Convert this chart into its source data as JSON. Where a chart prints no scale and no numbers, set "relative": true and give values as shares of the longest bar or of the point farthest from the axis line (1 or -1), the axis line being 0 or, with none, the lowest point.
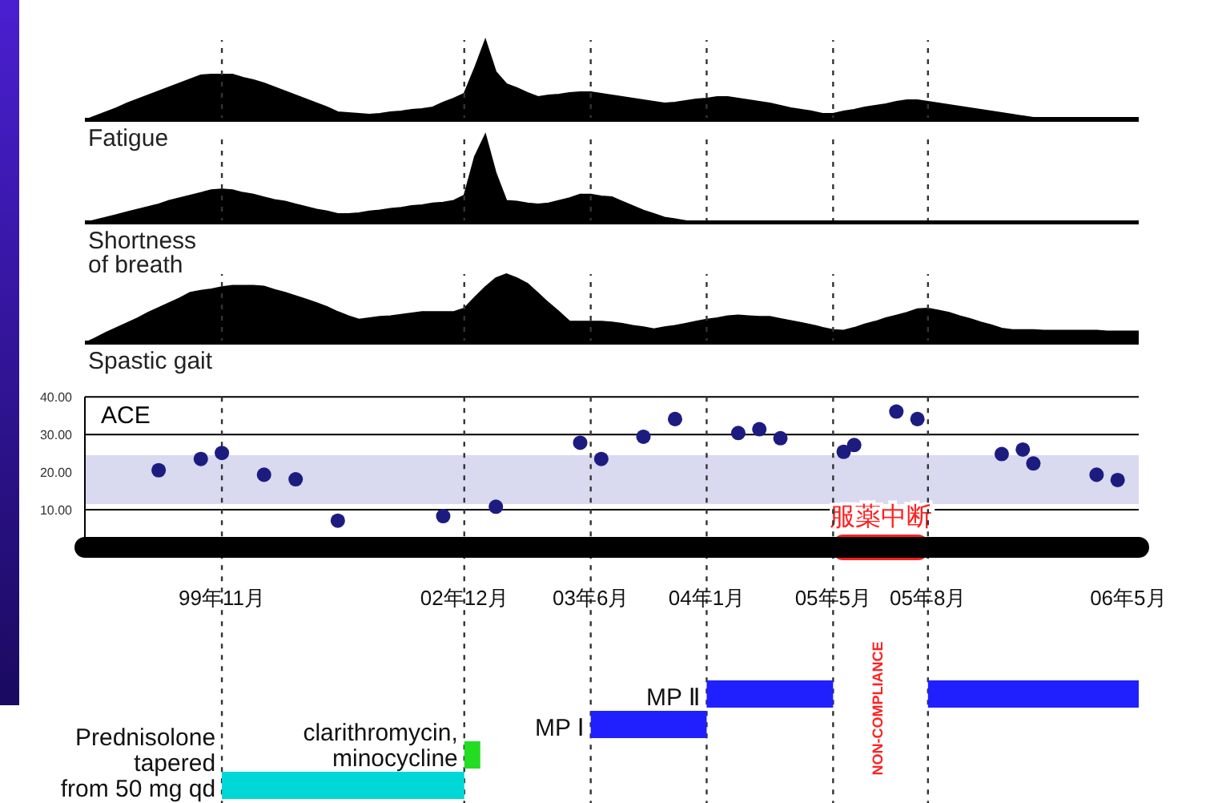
{
  "chart_data": [
    {
      "type": "area",
      "xlabel": "Fatigue",
      "relative": true,
      "color": "#000000",
      "tick_labels": false,
      "categories": [
        null,
        null,
        null,
        null,
        null,
        null,
        null,
        null,
        null,
        null,
        null,
        null,
        null,
        "99年11月",
        null,
        null,
        null,
        null,
        null,
        null,
        null,
        null,
        null,
        null,
        null,
        null,
        null,
        null,
        null,
        null,
        null,
        null,
        null,
        null,
        null,
        null,
        "02年12月",
        null,
        null,
        null,
        null,
        null,
        null,
        null,
        null,
        null,
        null,
        null,
        "03年6月",
        null,
        null,
        null,
        null,
        null,
        null,
        null,
        null,
        null,
        null,
        "04年1月",
        null,
        null,
        null,
        null,
        null,
        null,
        null,
        null,
        null,
        null,
        null,
        "05年5月",
        null,
        null,
        null,
        null,
        null,
        null,
        null,
        null,
        "05年8月",
        null,
        null,
        null,
        null,
        null,
        null,
        null,
        null,
        null,
        null,
        null,
        null,
        null,
        null,
        null,
        null,
        null,
        null,
        "06年5月",
        null
      ],
      "values": [
        0,
        0.05,
        0.1,
        0.15,
        0.21,
        0.26,
        0.31,
        0.36,
        0.41,
        0.46,
        0.51,
        0.56,
        0.57,
        0.57,
        0.57,
        0.53,
        0.5,
        0.46,
        0.41,
        0.36,
        0.31,
        0.26,
        0.21,
        0.16,
        0.1,
        0.09,
        0.08,
        0.07,
        0.08,
        0.1,
        0.11,
        0.13,
        0.14,
        0.16,
        0.22,
        0.27,
        0.33,
        0.65,
        1,
        0.6,
        0.45,
        0.4,
        0.34,
        0.29,
        0.31,
        0.32,
        0.34,
        0.35,
        0.35,
        0.33,
        0.31,
        0.29,
        0.27,
        0.25,
        0.23,
        0.21,
        0.22,
        0.24,
        0.26,
        0.27,
        0.29,
        0.29,
        0.27,
        0.25,
        0.23,
        0.21,
        0.18,
        0.15,
        0.13,
        0.11,
        0.08,
        0.08,
        0.11,
        0.13,
        0.16,
        0.18,
        0.2,
        0.23,
        0.25,
        0.25,
        0.23,
        0.21,
        0.19,
        0.17,
        0.15,
        0.13,
        0.11,
        0.09,
        0.07,
        0.05,
        0.03,
        0.03,
        0.03,
        0.03,
        0.03,
        0.03,
        0.03,
        0.03,
        0.03,
        0.03,
        0.03
      ],
      "ref_lines": [
        {
          "axis": "x",
          "value": "99年11月",
          "line_style": "dashed"
        },
        {
          "axis": "x",
          "value": "02年12月",
          "line_style": "dashed"
        },
        {
          "axis": "x",
          "value": "03年6月",
          "line_style": "dashed"
        },
        {
          "axis": "x",
          "value": "04年1月",
          "line_style": "dashed"
        },
        {
          "axis": "x",
          "value": "05年5月",
          "line_style": "dashed"
        },
        {
          "axis": "x",
          "value": "05年8月",
          "line_style": "dashed"
        }
      ]
    },
    {
      "type": "area",
      "xlabel": "Shortness\nof breath",
      "relative": true,
      "color": "#000000",
      "tick_labels": false,
      "categories": [
        null,
        null,
        null,
        null,
        null,
        null,
        null,
        null,
        null,
        null,
        null,
        null,
        null,
        "99年11月",
        null,
        null,
        null,
        null,
        null,
        null,
        null,
        null,
        null,
        null,
        null,
        null,
        null,
        null,
        null,
        null,
        null,
        null,
        null,
        null,
        null,
        null,
        "02年12月",
        null,
        null,
        null,
        null,
        null,
        null,
        null,
        null,
        null,
        null,
        null,
        "03年6月",
        null,
        null,
        null,
        null,
        null,
        null,
        null,
        null,
        null,
        null,
        "04年1月",
        null,
        null,
        null,
        null,
        null,
        null,
        null,
        null,
        null,
        null,
        null,
        "05年5月",
        null,
        null,
        null,
        null,
        null,
        null,
        null,
        null,
        "05年8月",
        null,
        null,
        null,
        null,
        null,
        null,
        null,
        null,
        null,
        null,
        null,
        null,
        null,
        null,
        null,
        null,
        null,
        null,
        "06年5月",
        null
      ],
      "values": [
        0,
        0.03,
        0.06,
        0.09,
        0.12,
        0.15,
        0.18,
        0.21,
        0.25,
        0.28,
        0.31,
        0.34,
        0.37,
        0.38,
        0.37,
        0.34,
        0.32,
        0.29,
        0.26,
        0.24,
        0.21,
        0.18,
        0.15,
        0.13,
        0.1,
        0.1,
        0.11,
        0.13,
        0.14,
        0.16,
        0.17,
        0.19,
        0.2,
        0.22,
        0.23,
        0.25,
        0.31,
        0.75,
        1,
        0.56,
        0.25,
        0.24,
        0.22,
        0.21,
        0.22,
        0.25,
        0.28,
        0.32,
        0.32,
        0.3,
        0.29,
        0.24,
        0.19,
        0.14,
        0.1,
        0.06,
        0.04,
        0.02,
        0,
        0,
        0,
        0,
        0,
        0,
        0,
        0,
        0,
        0,
        0,
        0,
        0,
        0,
        0,
        0,
        0,
        0,
        0,
        0,
        0,
        0,
        0,
        0,
        0,
        0,
        0,
        0,
        0,
        0,
        0,
        0,
        0,
        0,
        0,
        0,
        0,
        0,
        0,
        0,
        0,
        0,
        0
      ],
      "ref_lines": [
        {
          "axis": "x",
          "value": "99年11月",
          "line_style": "dashed"
        },
        {
          "axis": "x",
          "value": "02年12月",
          "line_style": "dashed"
        },
        {
          "axis": "x",
          "value": "03年6月",
          "line_style": "dashed"
        },
        {
          "axis": "x",
          "value": "04年1月",
          "line_style": "dashed"
        },
        {
          "axis": "x",
          "value": "05年5月",
          "line_style": "dashed"
        },
        {
          "axis": "x",
          "value": "05年8月",
          "line_style": "dashed"
        }
      ]
    },
    {
      "type": "area",
      "xlabel": "Spastic gait",
      "relative": true,
      "color": "#000000",
      "tick_labels": false,
      "categories": [
        null,
        null,
        null,
        null,
        null,
        null,
        null,
        null,
        null,
        null,
        null,
        null,
        null,
        "99年11月",
        null,
        null,
        null,
        null,
        null,
        null,
        null,
        null,
        null,
        null,
        null,
        null,
        null,
        null,
        null,
        null,
        null,
        null,
        null,
        null,
        null,
        null,
        "02年12月",
        null,
        null,
        null,
        null,
        null,
        null,
        null,
        null,
        null,
        null,
        null,
        "03年6月",
        null,
        null,
        null,
        null,
        null,
        null,
        null,
        null,
        null,
        null,
        "04年1月",
        null,
        null,
        null,
        null,
        null,
        null,
        null,
        null,
        null,
        null,
        null,
        "05年5月",
        null,
        null,
        null,
        null,
        null,
        null,
        null,
        null,
        "05年8月",
        null,
        null,
        null,
        null,
        null,
        null,
        null,
        null,
        null,
        null,
        null,
        null,
        null,
        null,
        null,
        null,
        null,
        null,
        "06年5月",
        null
      ],
      "values": [
        0,
        0.07,
        0.15,
        0.22,
        0.29,
        0.36,
        0.44,
        0.51,
        0.58,
        0.65,
        0.73,
        0.76,
        0.78,
        0.81,
        0.83,
        0.83,
        0.83,
        0.82,
        0.77,
        0.73,
        0.68,
        0.63,
        0.58,
        0.52,
        0.45,
        0.39,
        0.34,
        0.36,
        0.38,
        0.39,
        0.41,
        0.43,
        0.45,
        0.45,
        0.45,
        0.45,
        0.5,
        0.66,
        0.81,
        0.94,
        1,
        0.94,
        0.86,
        0.72,
        0.58,
        0.45,
        0.31,
        0.31,
        0.31,
        0.31,
        0.3,
        0.28,
        0.25,
        0.23,
        0.2,
        0.23,
        0.25,
        0.28,
        0.31,
        0.34,
        0.36,
        0.39,
        0.4,
        0.39,
        0.38,
        0.38,
        0.35,
        0.32,
        0.29,
        0.26,
        0.22,
        0.19,
        0.18,
        0.22,
        0.27,
        0.31,
        0.36,
        0.4,
        0.44,
        0.49,
        0.5,
        0.47,
        0.44,
        0.39,
        0.35,
        0.3,
        0.26,
        0.21,
        0.19,
        0.19,
        0.19,
        0.18,
        0.18,
        0.18,
        0.18,
        0.18,
        0.18,
        0.17,
        0.17,
        0.17,
        0.17
      ],
      "ref_lines": [
        {
          "axis": "x",
          "value": "99年11月",
          "line_style": "dashed"
        },
        {
          "axis": "x",
          "value": "02年12月",
          "line_style": "dashed"
        },
        {
          "axis": "x",
          "value": "03年6月",
          "line_style": "dashed"
        },
        {
          "axis": "x",
          "value": "04年1月",
          "line_style": "dashed"
        },
        {
          "axis": "x",
          "value": "05年5月",
          "line_style": "dashed"
        },
        {
          "axis": "x",
          "value": "05年8月",
          "line_style": "dashed"
        }
      ]
    },
    {
      "type": "scatter",
      "title": "ACE",
      "color": "#1c1c80",
      "marker": "circle",
      "grid": "y",
      "categories": [
        null,
        null,
        null,
        null,
        null,
        null,
        null,
        null,
        null,
        null,
        null,
        null,
        null,
        "99年11月",
        null,
        null,
        null,
        null,
        null,
        null,
        null,
        null,
        null,
        null,
        null,
        null,
        null,
        null,
        null,
        null,
        null,
        null,
        null,
        null,
        null,
        null,
        "02年12月",
        null,
        null,
        null,
        null,
        null,
        null,
        null,
        null,
        null,
        null,
        null,
        "03年6月",
        null,
        null,
        null,
        null,
        null,
        null,
        null,
        null,
        null,
        null,
        "04年1月",
        null,
        null,
        null,
        null,
        null,
        null,
        null,
        null,
        null,
        null,
        null,
        "05年5月",
        null,
        null,
        null,
        null,
        null,
        null,
        null,
        null,
        "05年8月",
        null,
        null,
        null,
        null,
        null,
        null,
        null,
        null,
        null,
        null,
        null,
        null,
        null,
        null,
        null,
        null,
        null,
        null,
        "06年5月",
        null
      ],
      "values": [
        null,
        null,
        null,
        null,
        null,
        null,
        null,
        20.5,
        null,
        null,
        null,
        23.5,
        null,
        25.1,
        null,
        null,
        null,
        19.3,
        null,
        null,
        18.1,
        null,
        null,
        null,
        7.1,
        null,
        null,
        null,
        null,
        null,
        null,
        null,
        null,
        null,
        8.3,
        null,
        null,
        null,
        null,
        10.8,
        null,
        null,
        null,
        null,
        null,
        null,
        null,
        27.8,
        null,
        23.5,
        null,
        null,
        null,
        29.4,
        null,
        null,
        34.1,
        null,
        null,
        null,
        null,
        null,
        30.4,
        null,
        31.4,
        null,
        29.0,
        null,
        null,
        null,
        null,
        null,
        25.4,
        27.2,
        null,
        null,
        null,
        36.1,
        null,
        34.1,
        null,
        null,
        null,
        null,
        null,
        null,
        null,
        24.8,
        null,
        26.0,
        22.3,
        null,
        null,
        null,
        null,
        null,
        19.3,
        null,
        17.9,
        null,
        null
      ],
      "ylim": [
        0,
        40
      ],
      "yticks": [
        {
          "value": 10,
          "label": "10.00"
        },
        {
          "value": 20,
          "label": "20.00"
        },
        {
          "value": 30,
          "label": "30.00"
        },
        {
          "value": 40,
          "label": "40.00"
        }
      ],
      "bands": [
        {
          "axis": "y",
          "from": 11.5,
          "to": 24.5,
          "color": "#d9d9f0"
        },
        {
          "axis": "x",
          "from": "05年5月",
          "to": "05年8月",
          "label": "服薬中断",
          "color": "#ff2020"
        }
      ],
      "annotations": [
        "MP Ⅱ",
        "MP Ⅰ",
        "clarithromycin,\nminocycline",
        "Prednisolone\ntapered\nfrom 50 mg qd",
        "NON-COMPLIANCE"
      ],
      "ref_lines": [
        {
          "axis": "x",
          "value": "99年11月",
          "line_style": "dashed"
        },
        {
          "axis": "x",
          "value": "02年12月",
          "line_style": "dashed"
        },
        {
          "axis": "x",
          "value": "03年6月",
          "line_style": "dashed"
        },
        {
          "axis": "x",
          "value": "04年1月",
          "line_style": "dashed"
        },
        {
          "axis": "x",
          "value": "05年5月",
          "line_style": "dashed"
        },
        {
          "axis": "x",
          "value": "05年8月",
          "line_style": "dashed"
        }
      ]
    }
  ]
}
